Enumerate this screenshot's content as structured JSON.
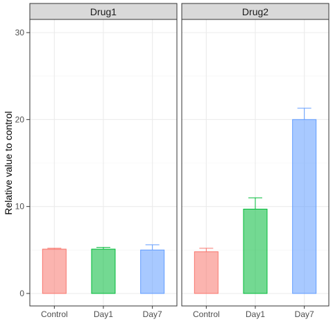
{
  "chart_data": {
    "type": "bar",
    "facets": [
      "Drug1",
      "Drug2"
    ],
    "categories": [
      "Control",
      "Day1",
      "Day7"
    ],
    "ylabel": "Relative value to control",
    "xlabel": "",
    "ylim": [
      0,
      31
    ],
    "yticks": [
      0,
      10,
      20,
      30
    ],
    "grid": true,
    "legend": "none",
    "colors": {
      "Control": "#F8766D",
      "Day1": "#00BA38",
      "Day7": "#619CFF"
    },
    "series": [
      {
        "facet": "Drug1",
        "values": [
          5.1,
          5.1,
          5.0
        ],
        "error_upper": [
          5.2,
          5.3,
          5.6
        ]
      },
      {
        "facet": "Drug2",
        "values": [
          4.8,
          9.7,
          20.0
        ],
        "error_upper": [
          5.2,
          11.0,
          21.3
        ]
      }
    ]
  }
}
